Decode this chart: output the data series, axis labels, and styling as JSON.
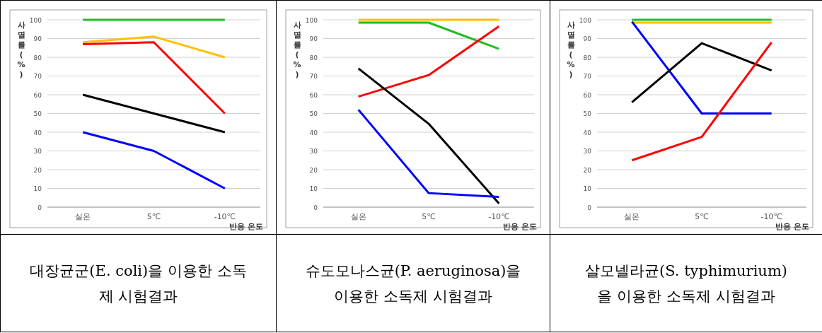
{
  "chart_data": [
    {
      "type": "line",
      "title": "대장균군(E. coli)을 이용한 소독제 시험결과",
      "xlabel": "반응 온도",
      "ylabel": "사멸률(%)",
      "categories": [
        "실온",
        "5℃",
        "-10℃"
      ],
      "ylim": [
        0,
        100
      ],
      "yticks": [
        0,
        10,
        20,
        30,
        40,
        50,
        60,
        70,
        80,
        90,
        100
      ],
      "grid": "y",
      "marker": "none",
      "line_style": "solid",
      "series": [
        {
          "color": "#22bb22",
          "values": [
            100,
            100,
            100
          ]
        },
        {
          "color": "#ffc000",
          "values": [
            88,
            91,
            80
          ]
        },
        {
          "color": "#ff0000",
          "values": [
            87,
            88,
            50
          ]
        },
        {
          "color": "#000000",
          "values": [
            60,
            50,
            40
          ]
        },
        {
          "color": "#0000ff",
          "values": [
            40,
            30,
            10
          ]
        }
      ]
    },
    {
      "type": "line",
      "title": "슈도모나스균(P. aeruginosa)을 이용한 소독제 시험결과",
      "xlabel": "반응 온도",
      "ylabel": "사멸률(%)",
      "categories": [
        "실온",
        "5℃",
        "-10℃"
      ],
      "ylim": [
        0,
        100
      ],
      "yticks": [
        0,
        10,
        20,
        30,
        40,
        50,
        60,
        70,
        80,
        90,
        100
      ],
      "grid": "y",
      "marker": "none",
      "line_style": "solid",
      "series": [
        {
          "color": "#ffc000",
          "values": [
            100,
            100,
            100
          ]
        },
        {
          "color": "#22bb22",
          "values": [
            98.5,
            98.5,
            84.5
          ]
        },
        {
          "color": "#ff0000",
          "values": [
            59,
            70.5,
            96.5
          ]
        },
        {
          "color": "#000000",
          "values": [
            74,
            44.5,
            2
          ]
        },
        {
          "color": "#0000ff",
          "values": [
            52,
            7.5,
            5.5
          ]
        }
      ]
    },
    {
      "type": "line",
      "title": "살모넬라균(S. typhimurium)을 이용한 소독제 시험결과",
      "xlabel": "반응 온도",
      "ylabel": "사멸률(%)",
      "categories": [
        "실온",
        "5℃",
        "-10℃"
      ],
      "ylim": [
        0,
        100
      ],
      "yticks": [
        0,
        10,
        20,
        30,
        40,
        50,
        60,
        70,
        80,
        90,
        100
      ],
      "grid": "y",
      "marker": "none",
      "line_style": "solid",
      "series": [
        {
          "color": "#22bb22",
          "values": [
            100,
            100,
            100
          ]
        },
        {
          "color": "#ffc000",
          "values": [
            98.5,
            98.5,
            98.5
          ]
        },
        {
          "color": "#0000ff",
          "values": [
            99,
            50,
            50
          ]
        },
        {
          "color": "#000000",
          "values": [
            56,
            87.5,
            73
          ]
        },
        {
          "color": "#ff0000",
          "values": [
            25,
            37.5,
            88
          ]
        }
      ]
    }
  ]
}
